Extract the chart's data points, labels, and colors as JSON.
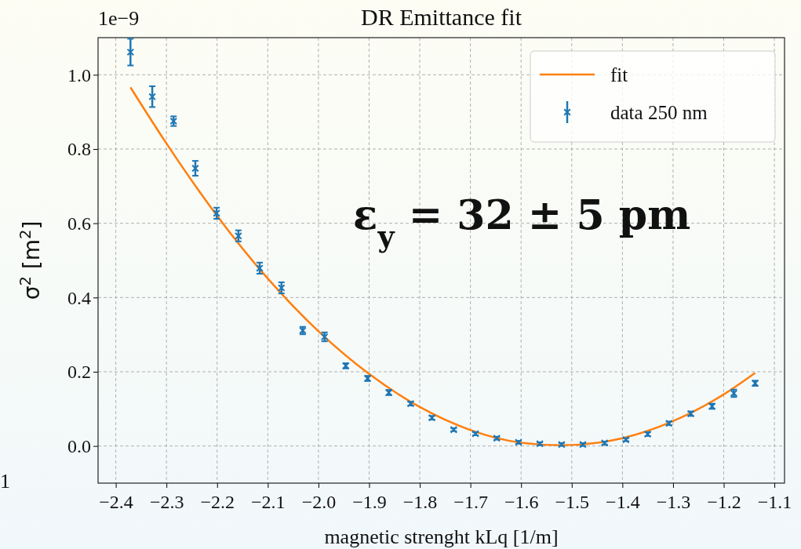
{
  "chart_data": {
    "type": "scatter",
    "title": "DR Emittance fit",
    "xlabel": "magnetic strenght kLq [1/m]",
    "ylabel": "σ$^{2}$ [m$^{2}$]",
    "annotations": [
      "1e−9",
      "ε$_{y}$ = 32 ± 5 pm",
      "1"
    ],
    "xlim": [
      -2.435,
      -1.08
    ],
    "ylim": [
      -0.1,
      1.1
    ],
    "xticks": [
      {
        "value": -2.4,
        "label": "−2.4"
      },
      {
        "value": -2.3,
        "label": "−2.3"
      },
      {
        "value": -2.2,
        "label": "−2.2"
      },
      {
        "value": -2.1,
        "label": "−2.1"
      },
      {
        "value": -2.0,
        "label": "−2.0"
      },
      {
        "value": -1.9,
        "label": "−1.9"
      },
      {
        "value": -1.8,
        "label": "−1.8"
      },
      {
        "value": -1.7,
        "label": "−1.7"
      },
      {
        "value": -1.6,
        "label": "−1.6"
      },
      {
        "value": -1.5,
        "label": "−1.5"
      },
      {
        "value": -1.4,
        "label": "−1.4"
      },
      {
        "value": -1.3,
        "label": "−1.3"
      },
      {
        "value": -1.2,
        "label": "−1.2"
      },
      {
        "value": -1.1,
        "label": "−1.1"
      }
    ],
    "yticks": [
      {
        "value": 0,
        "label": "0.0"
      },
      {
        "value": 0.2,
        "label": "0.2"
      },
      {
        "value": 0.4,
        "label": "0.4"
      },
      {
        "value": 0.6,
        "label": "0.6"
      },
      {
        "value": 0.8,
        "label": "0.8"
      },
      {
        "value": 1.0,
        "label": "1.0"
      }
    ],
    "grid": true,
    "legend": "top right",
    "series": [
      {
        "name": "fit",
        "type": "line",
        "color": "#ff7f0e",
        "line_style": "solid",
        "marker": "none",
        "x": [
          -2.371,
          -2.3,
          -2.2,
          -2.1,
          -2.0,
          -1.9,
          -1.8,
          -1.7,
          -1.6,
          -1.52,
          -1.4,
          -1.3,
          -1.2,
          -1.138
        ],
        "values": [
          0.966,
          0.815,
          0.62,
          0.451,
          0.309,
          0.194,
          0.105,
          0.043,
          0.009,
          0.002,
          0.021,
          0.067,
          0.139,
          0.197
        ]
      },
      {
        "name": "data 250 nm",
        "color": "#1f77b4",
        "marker": "cross",
        "x": [
          -2.371,
          -2.328,
          -2.286,
          -2.243,
          -2.201,
          -2.158,
          -2.116,
          -2.073,
          -2.031,
          -1.988,
          -1.946,
          -1.903,
          -1.861,
          -1.818,
          -1.776,
          -1.733,
          -1.69,
          -1.648,
          -1.605,
          -1.563,
          -1.52,
          -1.478,
          -1.435,
          -1.393,
          -1.35,
          -1.308,
          -1.265,
          -1.223,
          -1.18,
          -1.138
        ],
        "values": [
          1.061,
          0.941,
          0.875,
          0.748,
          0.627,
          0.566,
          0.479,
          0.426,
          0.311,
          0.294,
          0.216,
          0.182,
          0.144,
          0.114,
          0.076,
          0.044,
          0.033,
          0.021,
          0.01,
          0.006,
          0.004,
          0.004,
          0.008,
          0.017,
          0.032,
          0.061,
          0.087,
          0.107,
          0.142,
          0.169
        ],
        "errors": [
          0.036,
          0.028,
          0.013,
          0.02,
          0.015,
          0.015,
          0.015,
          0.015,
          0.01,
          0.012,
          0.007,
          0.007,
          0.007,
          0.005,
          0.005,
          0.004,
          0.004,
          0.004,
          0.004,
          0.004,
          0.004,
          0.004,
          0.004,
          0.004,
          0.005,
          0.005,
          0.006,
          0.007,
          0.01,
          0.007
        ]
      }
    ]
  }
}
